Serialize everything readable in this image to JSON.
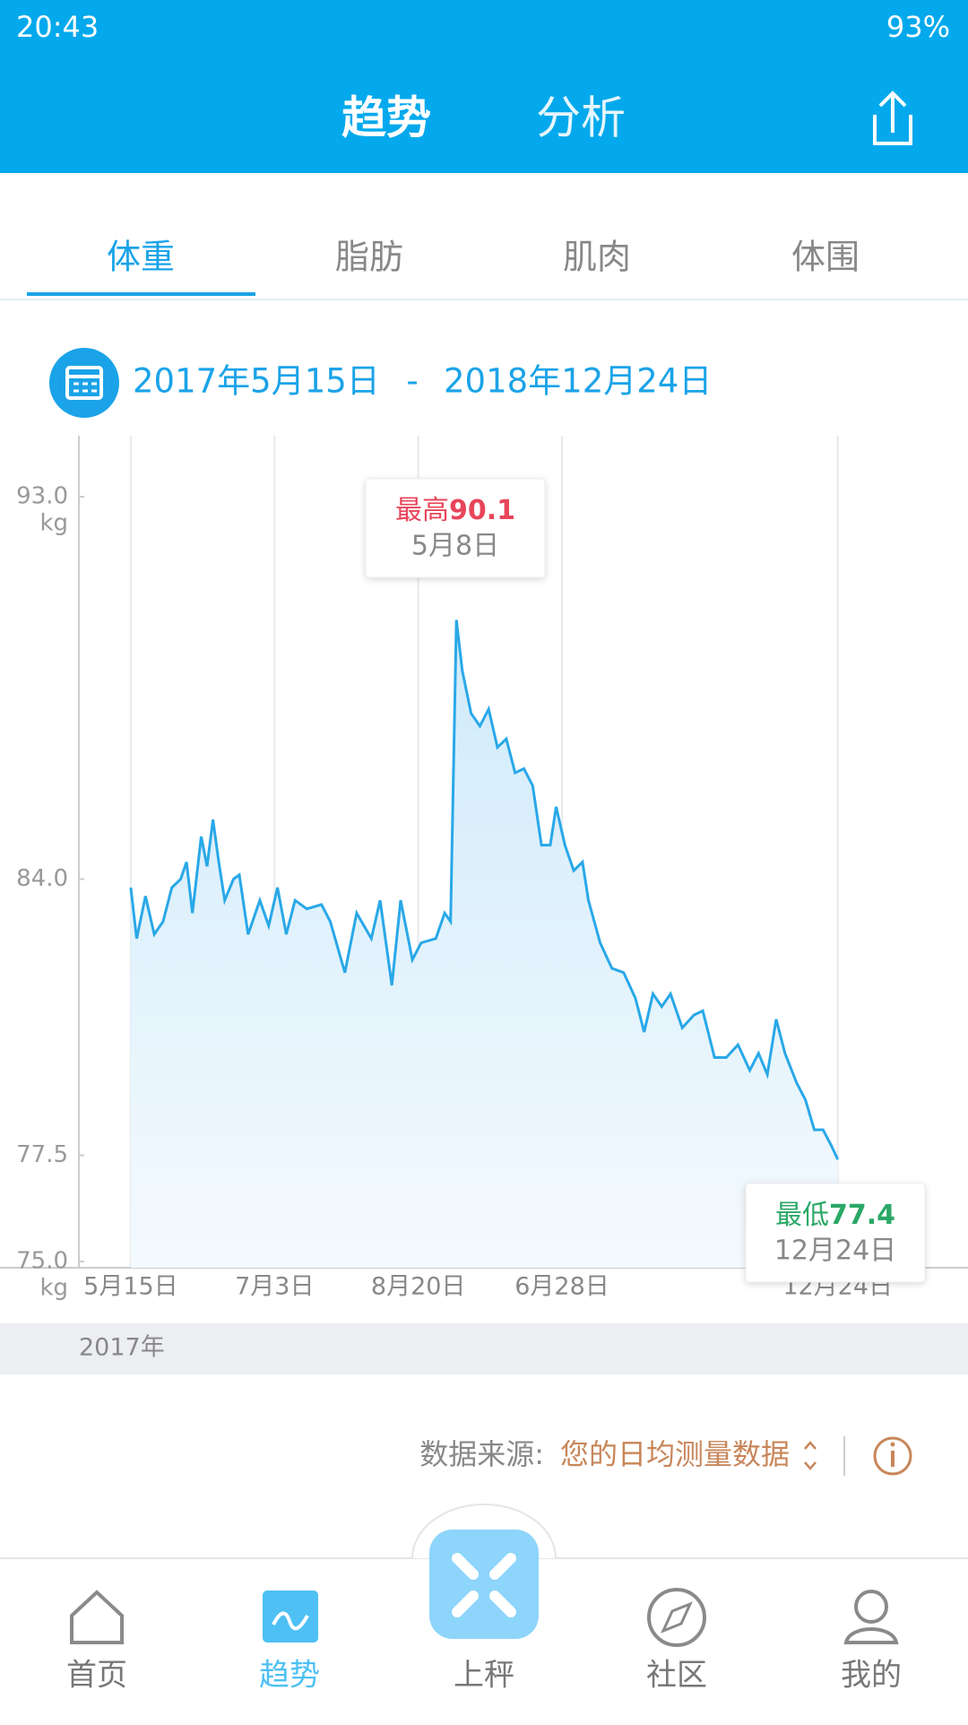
{
  "status_bar": {
    "time": "20:43",
    "battery": "93%"
  },
  "header": {
    "tabs": [
      "趋势",
      "分析"
    ]
  },
  "metric_tabs": [
    "体重",
    "脂肪",
    "肌肉",
    "体围"
  ],
  "date_range": {
    "start": "2017年5月15日",
    "separator": "-",
    "end": "2018年12月24日"
  },
  "chart_data": {
    "type": "line",
    "x": [
      0,
      2,
      5,
      8,
      11,
      14,
      17,
      19,
      21,
      24,
      26,
      28,
      30,
      32,
      35,
      37,
      40,
      44,
      47,
      50,
      53,
      56,
      60,
      65,
      68,
      73,
      77,
      82,
      85,
      89,
      92,
      96,
      99,
      104,
      107,
      109,
      111,
      113,
      116,
      119,
      122,
      125,
      128,
      131,
      134,
      137,
      140,
      143,
      145,
      148,
      151,
      154,
      156,
      160,
      164,
      168,
      172,
      175,
      178,
      181,
      184,
      188,
      192,
      195,
      199,
      203,
      207,
      211,
      214,
      217,
      220,
      223,
      227,
      230,
      233,
      236,
      239,
      241
    ],
    "series": [
      {
        "color": "#29a8e8",
        "values": [
          83.8,
          82.6,
          83.6,
          82.7,
          83.0,
          83.8,
          84.0,
          84.4,
          83.2,
          85.0,
          84.3,
          85.4,
          84.4,
          83.5,
          84.0,
          84.1,
          82.7,
          83.5,
          82.9,
          83.8,
          82.7,
          83.5,
          83.3,
          83.4,
          83.0,
          81.8,
          83.2,
          82.6,
          83.5,
          81.5,
          83.5,
          82.1,
          82.5,
          82.6,
          83.2,
          83.0,
          90.1,
          88.9,
          87.9,
          87.6,
          88.0,
          87.1,
          87.3,
          86.5,
          86.6,
          86.2,
          84.8,
          84.8,
          85.7,
          84.8,
          84.2,
          84.4,
          83.5,
          82.5,
          81.9,
          81.8,
          81.2,
          80.4,
          81.3,
          81.0,
          81.3,
          80.5,
          80.8,
          80.9,
          79.8,
          79.8,
          80.1,
          79.5,
          79.9,
          79.4,
          80.7,
          79.9,
          79.2,
          78.8,
          78.1,
          78.1,
          77.7,
          77.4
        ]
      }
    ],
    "xlim": [
      -17.7,
      285.4
    ],
    "xticks": [
      {
        "value": 0,
        "label": "5月15日"
      },
      {
        "value": 49,
        "label": "7月3日"
      },
      {
        "value": 98,
        "label": "8月20日"
      },
      {
        "value": 147,
        "label": "6月28日"
      },
      {
        "value": 241,
        "label": "12月24日"
      }
    ],
    "ylim": [
      75,
      93
    ],
    "yticks": [
      {
        "value": 75,
        "label": "75.0"
      },
      {
        "value": 77.5,
        "label": "77.5"
      },
      {
        "value": 84,
        "label": "84.0"
      },
      {
        "value": 93,
        "label": "93.0"
      }
    ],
    "y_unit": "kg",
    "grid": "x",
    "max_annotation": {
      "label": "最高",
      "value": 90.1,
      "date": "5月8日"
    },
    "min_annotation": {
      "label": "最低",
      "value": 77.4,
      "date": "12月24日"
    },
    "year_label": "2017年"
  },
  "data_source": {
    "label": "数据来源:",
    "value": "您的日均测量数据"
  },
  "nav": [
    "首页",
    "趋势",
    "上秤",
    "社区",
    "我的"
  ]
}
